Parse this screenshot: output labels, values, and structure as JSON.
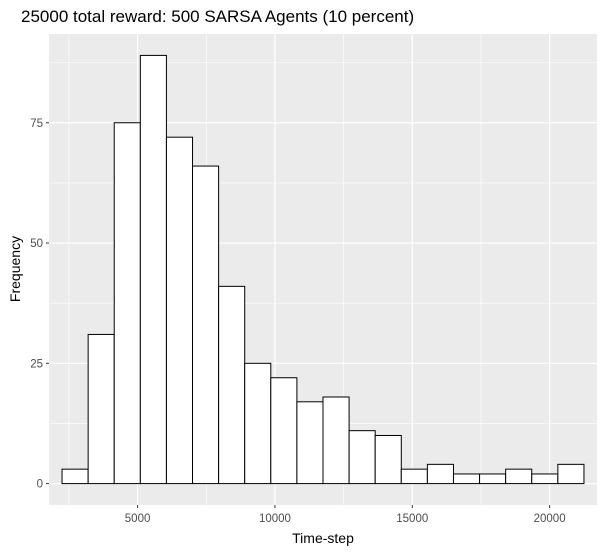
{
  "chart_data": {
    "type": "bar",
    "title": "25000 total reward: 500 SARSA Agents (10 percent)",
    "xlabel": "Time-step",
    "ylabel": "Frequency",
    "bin_edges": [
      2250,
      3200,
      4150,
      5100,
      6050,
      7000,
      7950,
      8900,
      9850,
      10800,
      11750,
      12700,
      13650,
      14600,
      15550,
      16500,
      17450,
      18400,
      19350,
      20300,
      21250
    ],
    "values": [
      3,
      31,
      75,
      89,
      72,
      66,
      41,
      25,
      22,
      17,
      18,
      11,
      10,
      3,
      4,
      2,
      2,
      3,
      2,
      4
    ],
    "xlim": [
      1775,
      21725
    ],
    "ylim": [
      -4.45,
      93.45
    ],
    "x_ticks": [
      5000,
      10000,
      15000,
      20000
    ],
    "x_tick_labels": [
      "5000",
      "10000",
      "15000",
      "20000"
    ],
    "y_ticks": [
      0,
      25,
      50,
      75
    ],
    "y_tick_labels": [
      "0",
      "25",
      "50",
      "75"
    ],
    "grid": true,
    "colors": {
      "panel": "#ebebeb",
      "grid_major": "#ffffff",
      "bar_fill": "#ffffff",
      "bar_stroke": "#000000"
    }
  }
}
